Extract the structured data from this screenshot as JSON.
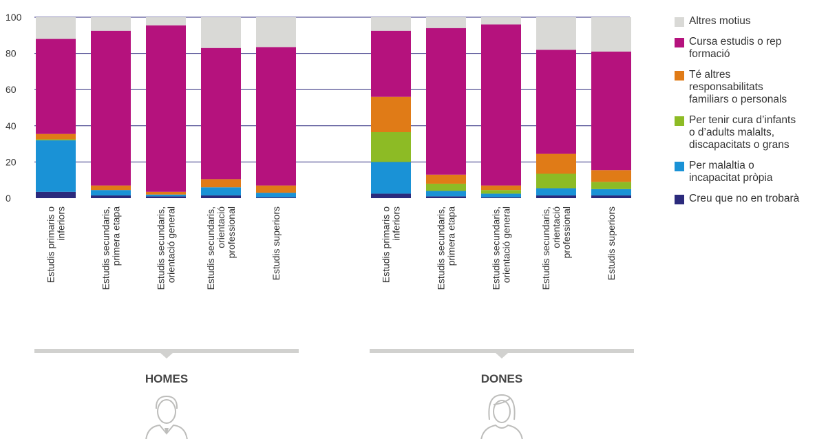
{
  "chart_data": {
    "type": "bar",
    "stacked": true,
    "ylim": [
      0,
      100
    ],
    "yticks": [
      0,
      20,
      40,
      60,
      80,
      100
    ],
    "grid": true,
    "legend_position": "right",
    "groups": [
      {
        "label": "HOMES",
        "icon": "man-avatar-icon",
        "categories": [
          "Estudis primaris o\ninferiors",
          "Estudis secundaris,\nprimera etapa",
          "Estudis secundaris,\norientació general",
          "Estudis secundaris,\norientació\nprofessional",
          "Estudis superiors"
        ],
        "series": [
          {
            "name": "Creu que no en trobarà",
            "color": "#2b2a7c",
            "values": [
              3.5,
              1.5,
              1.0,
              1.5,
              0.5
            ]
          },
          {
            "name": "Per malaltia o\nincapacitat pròpia",
            "color": "#1a92d6",
            "values": [
              28.5,
              3.0,
              1.0,
              4.5,
              2.5
            ]
          },
          {
            "name": "Per tenir cura d’infants\no d’adults malalts,\ndiscapacitats o grans",
            "color": "#8dbb25",
            "values": [
              0.5,
              0.0,
              0.0,
              0.0,
              0.0
            ]
          },
          {
            "name": "Té altres\nresponsabilitats\nfamiliars o personals",
            "color": "#e07b17",
            "values": [
              3.0,
              2.5,
              1.5,
              4.5,
              4.0
            ]
          },
          {
            "name": "Cursa estudis o rep\nformació",
            "color": "#b5127d",
            "values": [
              52.5,
              85.5,
              92.0,
              72.5,
              76.5
            ]
          },
          {
            "name": "Altres motius",
            "color": "#d9d9d6",
            "values": [
              12.0,
              7.5,
              4.5,
              17.0,
              16.5
            ]
          }
        ]
      },
      {
        "label": "DONES",
        "icon": "woman-avatar-icon",
        "categories": [
          "Estudis primaris o\ninferiors",
          "Estudis secundaris,\nprimera etapa",
          "Estudis secundaris,\norientació general",
          "Estudis secundaris,\norientació\nprofessional",
          "Estudis superiors"
        ],
        "series": [
          {
            "name": "Creu que no en trobarà",
            "color": "#2b2a7c",
            "values": [
              2.5,
              1.0,
              0.5,
              1.5,
              1.5
            ]
          },
          {
            "name": "Per malaltia o\nincapacitat pròpia",
            "color": "#1a92d6",
            "values": [
              17.5,
              3.0,
              2.0,
              4.0,
              3.5
            ]
          },
          {
            "name": "Per tenir cura d’infants\no d’adults malalts,\ndiscapacitats o grans",
            "color": "#8dbb25",
            "values": [
              16.5,
              4.0,
              2.0,
              8.0,
              4.0
            ]
          },
          {
            "name": "Té altres\nresponsabilitats\nfamiliars o personals",
            "color": "#e07b17",
            "values": [
              19.5,
              5.0,
              2.5,
              11.0,
              6.5
            ]
          },
          {
            "name": "Cursa estudis o rep\nformació",
            "color": "#b5127d",
            "values": [
              36.5,
              81.0,
              89.0,
              57.5,
              65.5
            ]
          },
          {
            "name": "Altres motius",
            "color": "#d9d9d6",
            "values": [
              7.5,
              6.0,
              4.0,
              18.0,
              19.0
            ]
          }
        ]
      }
    ],
    "legend": [
      {
        "name": "Altres motius",
        "color": "#d9d9d6"
      },
      {
        "name": "Cursa estudis o rep\nformació",
        "color": "#b5127d"
      },
      {
        "name": "Té altres\nresponsabilitats\nfamiliars o personals",
        "color": "#e07b17"
      },
      {
        "name": "Per tenir cura d’infants\no d’adults malalts,\ndiscapacitats o grans",
        "color": "#8dbb25"
      },
      {
        "name": "Per malaltia o\nincapacitat pròpia",
        "color": "#1a92d6"
      },
      {
        "name": "Creu que no en trobarà",
        "color": "#2b2a7c"
      }
    ],
    "gridline_color": "#2e2a7e"
  }
}
